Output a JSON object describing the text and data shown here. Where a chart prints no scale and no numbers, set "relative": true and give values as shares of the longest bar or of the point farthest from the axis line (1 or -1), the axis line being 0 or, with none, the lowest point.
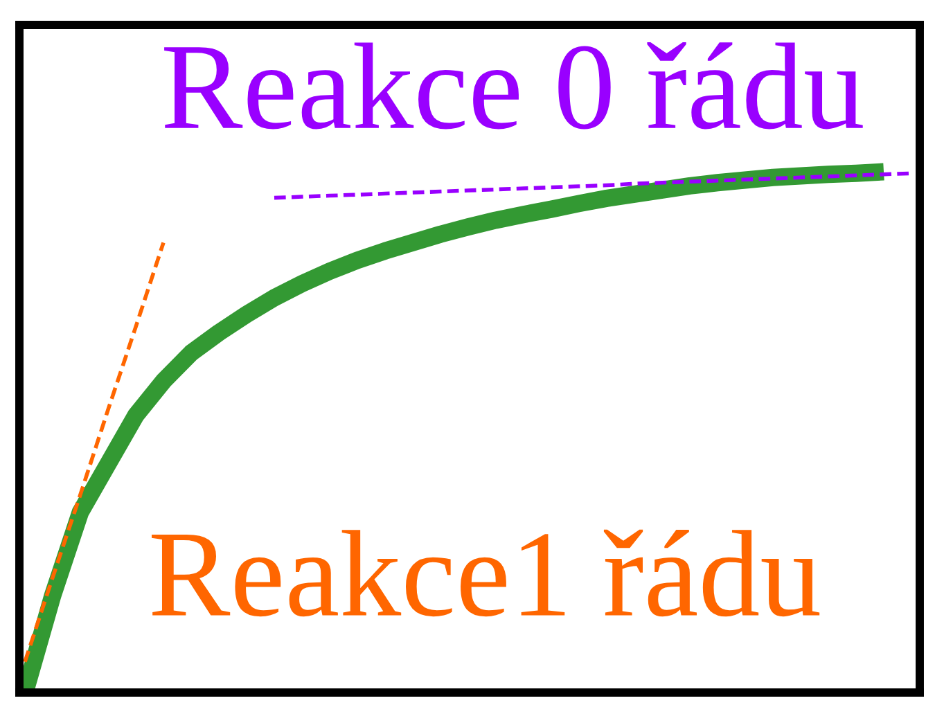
{
  "chart_data": {
    "type": "line",
    "relative": true,
    "legend": false,
    "categories": [
      null,
      null,
      null,
      null,
      null,
      null,
      null,
      null,
      null,
      null,
      null,
      null,
      null,
      null,
      null,
      null,
      null,
      null,
      null,
      null,
      null,
      null,
      null,
      null,
      null,
      null,
      null,
      null,
      null,
      null,
      null,
      null,
      null
    ],
    "series": [
      {
        "color": "#339933",
        "line_style": "solid",
        "values": [
          0,
          0.186,
          0.346,
          0.439,
          0.532,
          0.598,
          0.652,
          0.691,
          0.726,
          0.758,
          0.785,
          0.809,
          0.83,
          0.848,
          0.864,
          0.88,
          0.894,
          0.907,
          0.918,
          0.928,
          0.939,
          0.949,
          0.957,
          0.965,
          0.973,
          0.979,
          0.984,
          0.989,
          0.992,
          0.995,
          0.997,
          1.0,
          null
        ]
      },
      {
        "name": "Reakce1 řádu",
        "color": "#ff6600",
        "line_style": "dashed",
        "values": [
          0.059,
          0.221,
          0.38,
          0.543,
          0.702,
          0.864,
          null,
          null,
          null,
          null,
          null,
          null,
          null,
          null,
          null,
          null,
          null,
          null,
          null,
          null,
          null,
          null,
          null,
          null,
          null,
          null,
          null,
          null,
          null,
          null,
          null,
          null,
          null
        ]
      },
      {
        "name": "Reakce 0 řádu",
        "color": "#9900ff",
        "line_style": "dashed",
        "values": [
          null,
          null,
          null,
          null,
          null,
          null,
          null,
          null,
          null,
          0.95,
          0.952,
          0.954,
          0.956,
          0.958,
          0.96,
          0.962,
          0.964,
          0.966,
          0.968,
          0.97,
          0.972,
          0.974,
          0.977,
          0.979,
          0.981,
          0.983,
          0.985,
          0.987,
          0.989,
          0.991,
          0.993,
          0.995,
          0.997
        ]
      }
    ]
  }
}
